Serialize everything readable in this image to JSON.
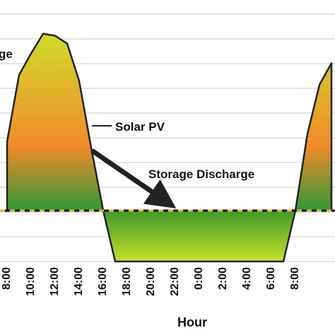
{
  "chart_data": {
    "type": "area",
    "annotations": [
      "ge",
      "Solar PV",
      "Storage Discharge"
    ],
    "xlabel": "Hour",
    "categories": [
      "8:00",
      null,
      "10:00",
      null,
      "12:00",
      null,
      "14:00",
      null,
      "16:00",
      null,
      "18:00",
      null,
      "20:00",
      null,
      "22:00",
      null,
      "0:00",
      null,
      "2:00",
      null,
      "4:00",
      null,
      "6:00",
      null,
      "8:00",
      null,
      null,
      null
    ],
    "series": [
      {
        "name": "Solar PV",
        "color": "#f08a2a",
        "values": [
          35,
          69,
          80,
          90,
          89,
          85,
          66,
          32,
          0,
          null,
          null,
          null,
          null,
          null,
          null,
          null,
          null,
          null,
          null,
          null,
          null,
          null,
          null,
          null,
          0,
          39,
          64,
          75
        ]
      },
      {
        "name": "Storage Discharge",
        "color": "#3f9a2a",
        "values": [
          null,
          null,
          null,
          null,
          null,
          null,
          null,
          null,
          0,
          -26,
          -26,
          -26,
          -26,
          -26,
          -26,
          -26,
          -26,
          -26,
          -26,
          -26,
          -26,
          -26,
          -26,
          -26,
          0,
          null,
          null,
          null
        ]
      }
    ],
    "ylim": [
      -26,
      100
    ]
  }
}
